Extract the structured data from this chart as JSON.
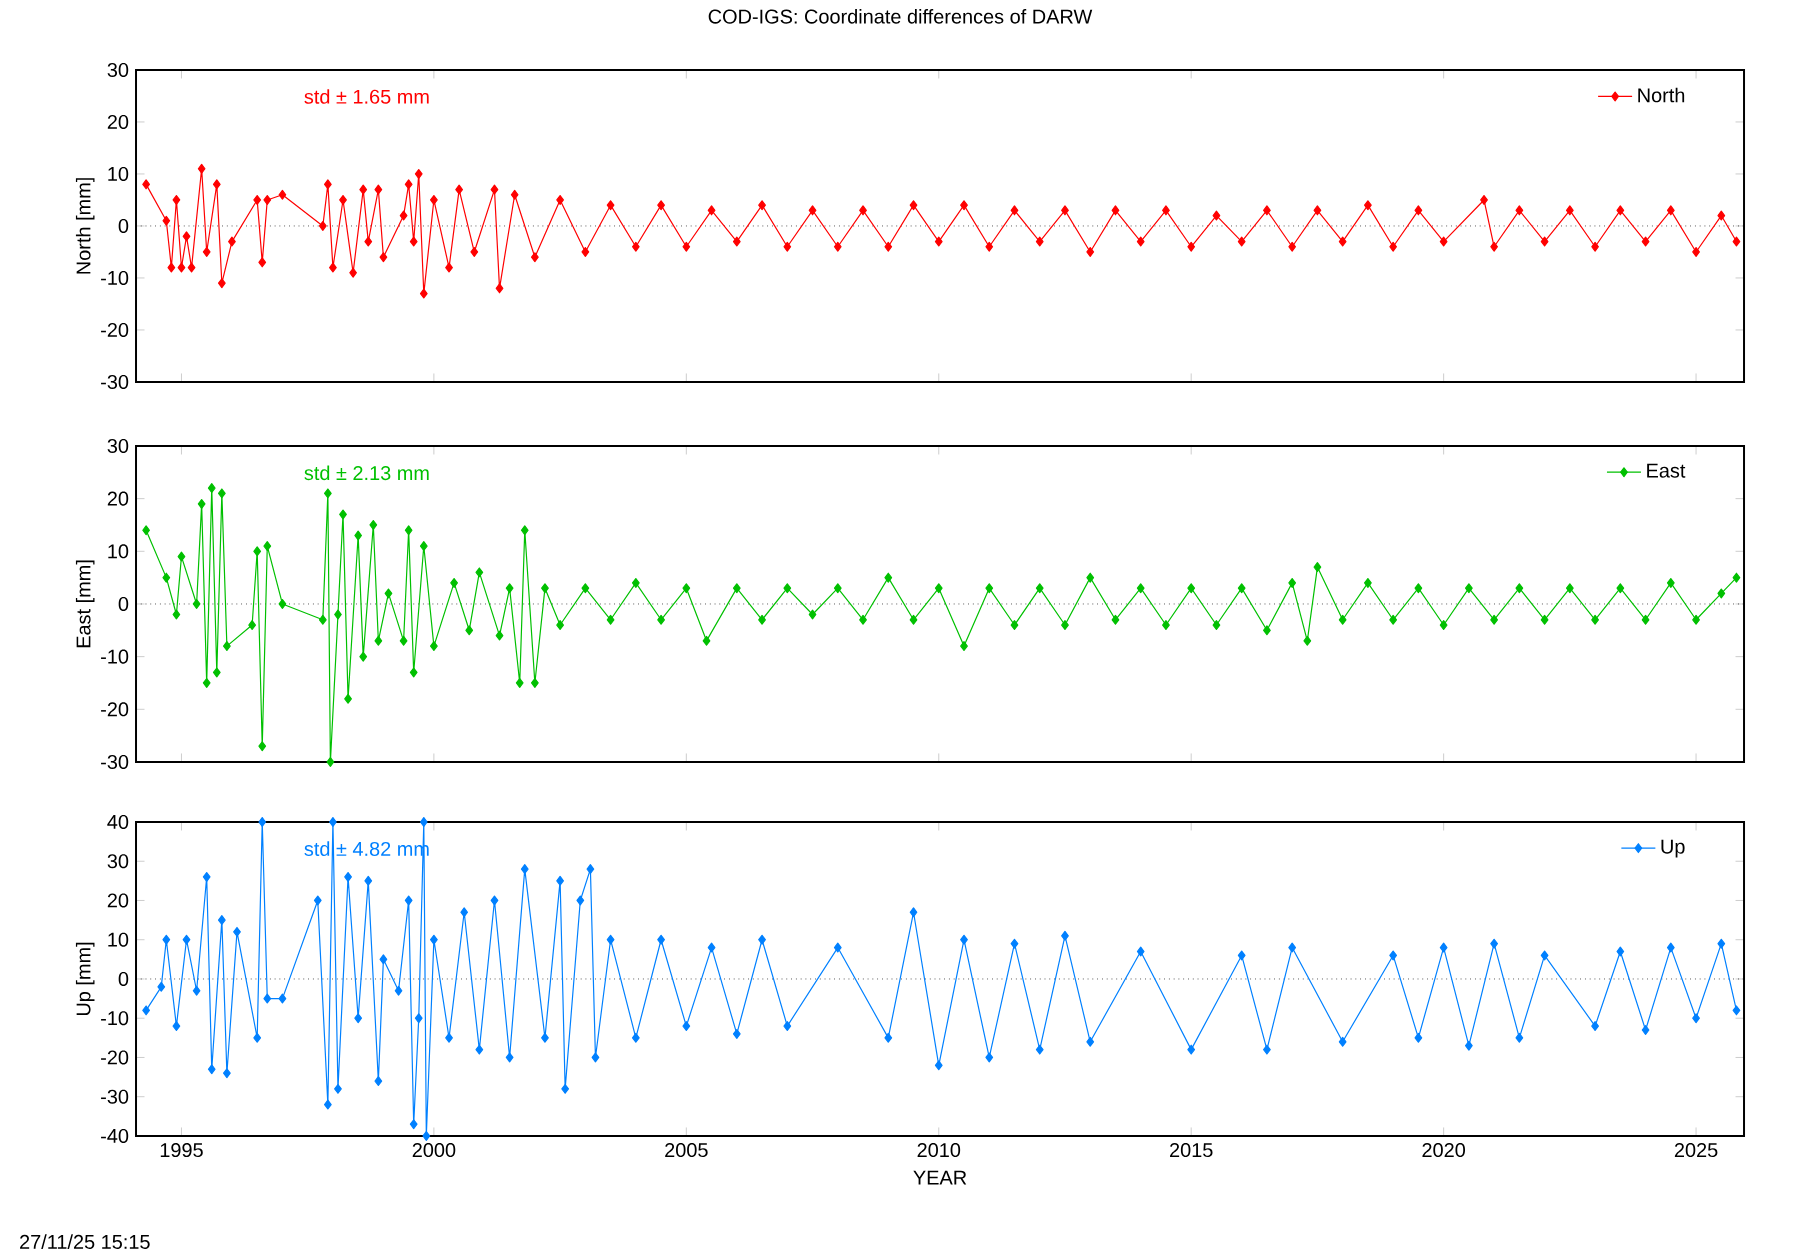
{
  "chart_data": [
    {
      "type": "line",
      "title": "COD-IGS: Coordinate differences of DARW",
      "ylabel": "North [mm]",
      "annotations": [
        "std ± 1.65 mm"
      ],
      "xlim": [
        1994.1,
        2025.95
      ],
      "xticks": [
        1995,
        2000,
        2005,
        2010,
        2015,
        2020,
        2025
      ],
      "ylim": [
        -30,
        30
      ],
      "yticks": [
        -30,
        -20,
        -10,
        0,
        10,
        20,
        30
      ],
      "tick_labels": "y",
      "legend": "top right",
      "marker": "diamond",
      "line_style": "solid",
      "ref_lines": [
        {
          "axis": "y",
          "value": 0,
          "color": "#000000",
          "line_style": "dotted"
        }
      ],
      "x": [
        1994.3,
        1994.7,
        1994.8,
        1994.9,
        1995.0,
        1995.1,
        1995.2,
        1995.4,
        1995.5,
        1995.7,
        1995.8,
        1996.0,
        1996.5,
        1996.6,
        1996.7,
        1997.0,
        1997.8,
        1997.9,
        1998.0,
        1998.2,
        1998.4,
        1998.6,
        1998.7,
        1998.9,
        1999.0,
        1999.4,
        1999.5,
        1999.6,
        1999.7,
        1999.8,
        2000.0,
        2000.3,
        2000.5,
        2000.8,
        2001.2,
        2001.3,
        2001.6,
        2002.0,
        2002.5,
        2003.0,
        2003.5,
        2004.0,
        2004.5,
        2005.0,
        2005.5,
        2006.0,
        2006.5,
        2007.0,
        2007.5,
        2008.0,
        2008.5,
        2009.0,
        2009.5,
        2010.0,
        2010.5,
        2011.0,
        2011.5,
        2012.0,
        2012.5,
        2013.0,
        2013.5,
        2014.0,
        2014.5,
        2015.0,
        2015.5,
        2016.0,
        2016.5,
        2017.0,
        2017.5,
        2018.0,
        2018.5,
        2019.0,
        2019.5,
        2020.0,
        2020.8,
        2021.0,
        2021.5,
        2022.0,
        2022.5,
        2023.0,
        2023.5,
        2024.0,
        2024.5,
        2025.0,
        2025.5,
        2025.8
      ],
      "series": [
        {
          "name": "North",
          "color": "#ff0000",
          "values": [
            8,
            1,
            -8,
            5,
            -8,
            -2,
            -8,
            11,
            -5,
            8,
            -11,
            -3,
            5,
            -7,
            5,
            6,
            0,
            8,
            -8,
            5,
            -9,
            7,
            -3,
            7,
            -6,
            2,
            8,
            -3,
            10,
            -13,
            5,
            -8,
            7,
            -5,
            7,
            -12,
            6,
            -6,
            5,
            -5,
            4,
            -4,
            4,
            -4,
            3,
            -3,
            4,
            -4,
            3,
            -4,
            3,
            -4,
            4,
            -3,
            4,
            -4,
            3,
            -3,
            3,
            -5,
            3,
            -3,
            3,
            -4,
            2,
            -3,
            3,
            -4,
            3,
            -3,
            4,
            -4,
            3,
            -3,
            5,
            -4,
            3,
            -3,
            3,
            -4,
            3,
            -3,
            3,
            -5,
            2,
            -3
          ]
        }
      ]
    },
    {
      "type": "line",
      "ylabel": "East [mm]",
      "annotations": [
        "std ± 2.13 mm"
      ],
      "xlim": [
        1994.1,
        2025.95
      ],
      "xticks": [
        1995,
        2000,
        2005,
        2010,
        2015,
        2020,
        2025
      ],
      "ylim": [
        -30,
        30
      ],
      "yticks": [
        -30,
        -20,
        -10,
        0,
        10,
        20,
        30
      ],
      "tick_labels": "y",
      "legend": "top right",
      "marker": "diamond",
      "line_style": "solid",
      "ref_lines": [
        {
          "axis": "y",
          "value": 0,
          "color": "#000000",
          "line_style": "dotted"
        }
      ],
      "x": [
        1994.3,
        1994.7,
        1994.9,
        1995.0,
        1995.3,
        1995.4,
        1995.5,
        1995.6,
        1995.7,
        1995.8,
        1995.9,
        1996.4,
        1996.5,
        1996.6,
        1996.7,
        1997.0,
        1997.8,
        1997.9,
        1997.95,
        1998.1,
        1998.2,
        1998.3,
        1998.5,
        1998.6,
        1998.8,
        1998.9,
        1999.1,
        1999.4,
        1999.5,
        1999.6,
        1999.8,
        2000.0,
        2000.4,
        2000.7,
        2000.9,
        2001.3,
        2001.5,
        2001.7,
        2001.8,
        2002.0,
        2002.2,
        2002.5,
        2003.0,
        2003.5,
        2004.0,
        2004.5,
        2005.0,
        2005.4,
        2006.0,
        2006.5,
        2007.0,
        2007.5,
        2008.0,
        2008.5,
        2009.0,
        2009.5,
        2010.0,
        2010.5,
        2011.0,
        2011.5,
        2012.0,
        2012.5,
        2013.0,
        2013.5,
        2014.0,
        2014.5,
        2015.0,
        2015.5,
        2016.0,
        2016.5,
        2017.0,
        2017.3,
        2017.5,
        2018.0,
        2018.5,
        2019.0,
        2019.5,
        2020.0,
        2020.5,
        2021.0,
        2021.5,
        2022.0,
        2022.5,
        2023.0,
        2023.5,
        2024.0,
        2024.5,
        2025.0,
        2025.5,
        2025.8
      ],
      "series": [
        {
          "name": "East",
          "color": "#00c000",
          "values": [
            14,
            5,
            -2,
            9,
            0,
            19,
            -15,
            22,
            -13,
            21,
            -8,
            -4,
            10,
            -27,
            11,
            0,
            -3,
            21,
            -30,
            -2,
            17,
            -18,
            13,
            -10,
            15,
            -7,
            2,
            -7,
            14,
            -13,
            11,
            -8,
            4,
            -5,
            6,
            -6,
            3,
            -15,
            14,
            -15,
            3,
            -4,
            3,
            -3,
            4,
            -3,
            3,
            -7,
            3,
            -3,
            3,
            -2,
            3,
            -3,
            5,
            -3,
            3,
            -8,
            3,
            -4,
            3,
            -4,
            5,
            -3,
            3,
            -4,
            3,
            -4,
            3,
            -5,
            4,
            -7,
            7,
            -3,
            4,
            -3,
            3,
            -4,
            3,
            -3,
            3,
            -3,
            3,
            -3,
            3,
            -3,
            4,
            -3,
            2,
            5
          ]
        }
      ]
    },
    {
      "type": "line",
      "xlabel": "YEAR",
      "ylabel": "Up [mm]",
      "annotations": [
        "std ± 4.82 mm",
        "27/11/25 15:15"
      ],
      "xlim": [
        1994.1,
        2025.95
      ],
      "xticks": [
        1995,
        2000,
        2005,
        2010,
        2015,
        2020,
        2025
      ],
      "ylim": [
        -40,
        40
      ],
      "yticks": [
        -40,
        -30,
        -20,
        -10,
        0,
        10,
        20,
        30,
        40
      ],
      "legend": "top right",
      "marker": "diamond",
      "line_style": "solid",
      "ref_lines": [
        {
          "axis": "y",
          "value": 0,
          "color": "#000000",
          "line_style": "dotted"
        }
      ],
      "x": [
        1994.3,
        1994.6,
        1994.7,
        1994.9,
        1995.1,
        1995.3,
        1995.5,
        1995.6,
        1995.8,
        1995.9,
        1996.1,
        1996.5,
        1996.6,
        1996.7,
        1997.0,
        1997.7,
        1997.9,
        1998.0,
        1998.1,
        1998.3,
        1998.5,
        1998.7,
        1998.9,
        1999.0,
        1999.3,
        1999.5,
        1999.6,
        1999.7,
        1999.8,
        1999.85,
        2000.0,
        2000.3,
        2000.6,
        2000.9,
        2001.2,
        2001.5,
        2001.8,
        2002.2,
        2002.5,
        2002.6,
        2002.9,
        2003.1,
        2003.2,
        2003.5,
        2004.0,
        2004.5,
        2005.0,
        2005.5,
        2006.0,
        2006.5,
        2007.0,
        2008.0,
        2009.0,
        2009.5,
        2010.0,
        2010.5,
        2011.0,
        2011.5,
        2012.0,
        2012.5,
        2013.0,
        2014.0,
        2015.0,
        2016.0,
        2016.5,
        2017.0,
        2018.0,
        2019.0,
        2019.5,
        2020.0,
        2020.5,
        2021.0,
        2021.5,
        2022.0,
        2023.0,
        2023.5,
        2024.0,
        2024.5,
        2025.0,
        2025.5,
        2025.8
      ],
      "series": [
        {
          "name": "Up",
          "color": "#0080ff",
          "values": [
            -8,
            -2,
            10,
            -12,
            10,
            -3,
            26,
            -23,
            15,
            -24,
            12,
            -15,
            40,
            -5,
            -5,
            20,
            -32,
            40,
            -28,
            26,
            -10,
            25,
            -26,
            5,
            -3,
            20,
            -37,
            -10,
            40,
            -40,
            10,
            -15,
            17,
            -18,
            20,
            -20,
            28,
            -15,
            25,
            -28,
            20,
            28,
            -20,
            10,
            -15,
            10,
            -12,
            8,
            -14,
            10,
            -12,
            8,
            -15,
            17,
            -22,
            10,
            -20,
            9,
            -18,
            11,
            -16,
            7,
            -18,
            6,
            -18,
            8,
            -16,
            6,
            -15,
            8,
            -17,
            9,
            -15,
            6,
            -12,
            7,
            -13,
            8,
            -10,
            9,
            -8
          ]
        }
      ]
    }
  ]
}
